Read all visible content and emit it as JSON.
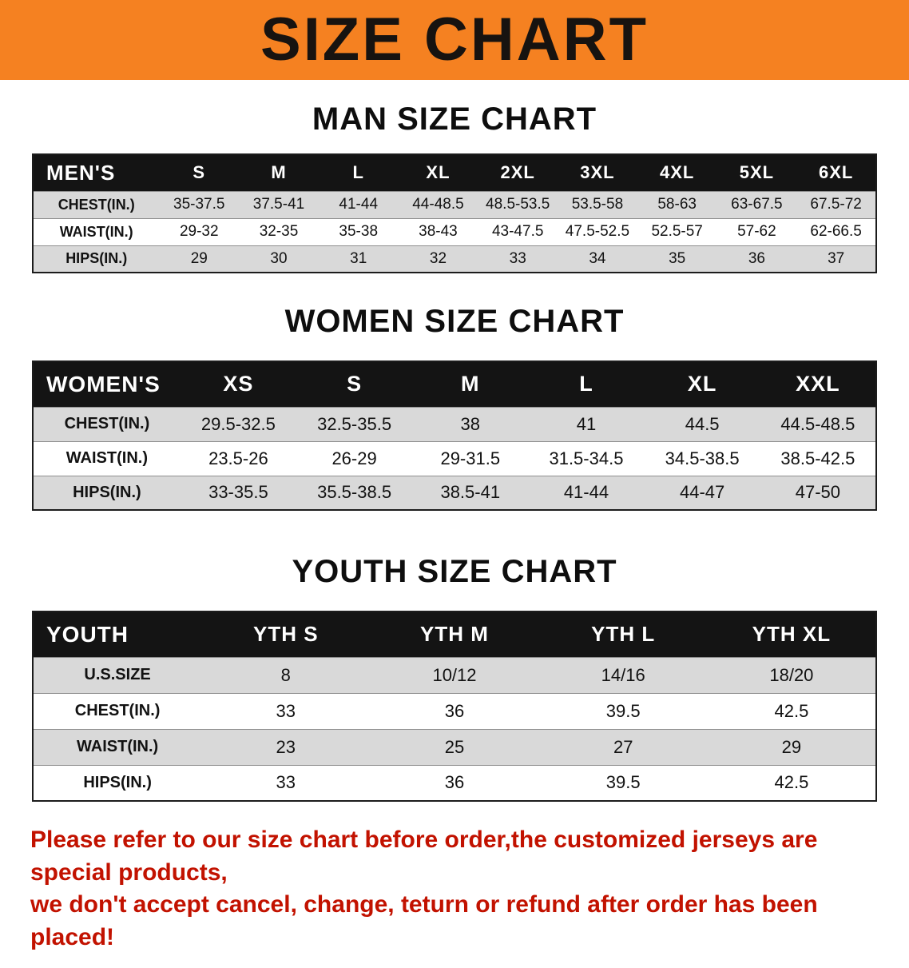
{
  "banner": {
    "title": "SIZE CHART",
    "bg_color": "#f58121",
    "text_color": "#171310"
  },
  "colors": {
    "table_header_bg": "#141414",
    "table_header_text": "#ffffff",
    "row_stripe": "#d9d9d9"
  },
  "sections": [
    {
      "id": "men",
      "heading": "MAN SIZE CHART",
      "table": {
        "header": [
          "MEN'S",
          "S",
          "M",
          "L",
          "XL",
          "2XL",
          "3XL",
          "4XL",
          "5XL",
          "6XL"
        ],
        "rows": [
          [
            "CHEST(IN.)",
            "35-37.5",
            "37.5-41",
            "41-44",
            "44-48.5",
            "48.5-53.5",
            "53.5-58",
            "58-63",
            "63-67.5",
            "67.5-72"
          ],
          [
            "WAIST(IN.)",
            "29-32",
            "32-35",
            "35-38",
            "38-43",
            "43-47.5",
            "47.5-52.5",
            "52.5-57",
            "57-62",
            "62-66.5"
          ],
          [
            "HIPS(IN.)",
            "29",
            "30",
            "31",
            "32",
            "33",
            "34",
            "35",
            "36",
            "37"
          ]
        ]
      }
    },
    {
      "id": "women",
      "heading": "WOMEN SIZE CHART",
      "table": {
        "header": [
          "WOMEN'S",
          "XS",
          "S",
          "M",
          "L",
          "XL",
          "XXL"
        ],
        "rows": [
          [
            "CHEST(IN.)",
            "29.5-32.5",
            "32.5-35.5",
            "38",
            "41",
            "44.5",
            "44.5-48.5"
          ],
          [
            "WAIST(IN.)",
            "23.5-26",
            "26-29",
            "29-31.5",
            "31.5-34.5",
            "34.5-38.5",
            "38.5-42.5"
          ],
          [
            "HIPS(IN.)",
            "33-35.5",
            "35.5-38.5",
            "38.5-41",
            "41-44",
            "44-47",
            "47-50"
          ]
        ]
      }
    },
    {
      "id": "youth",
      "heading": "YOUTH SIZE CHART",
      "table": {
        "header": [
          "YOUTH",
          "YTH S",
          "YTH M",
          "YTH L",
          "YTH XL"
        ],
        "rows": [
          [
            "U.S.SIZE",
            "8",
            "10/12",
            "14/16",
            "18/20"
          ],
          [
            "CHEST(IN.)",
            "33",
            "36",
            "39.5",
            "42.5"
          ],
          [
            "WAIST(IN.)",
            "23",
            "25",
            "27",
            "29"
          ],
          [
            "HIPS(IN.)",
            "33",
            "36",
            "39.5",
            "42.5"
          ]
        ]
      }
    }
  ],
  "disclaimer": {
    "lines": [
      "Please refer to our size chart before order,the customized jerseys are special products,",
      "we don't accept cancel, change, teturn or refund after order has been placed!"
    ],
    "text_color": "#c21200"
  }
}
